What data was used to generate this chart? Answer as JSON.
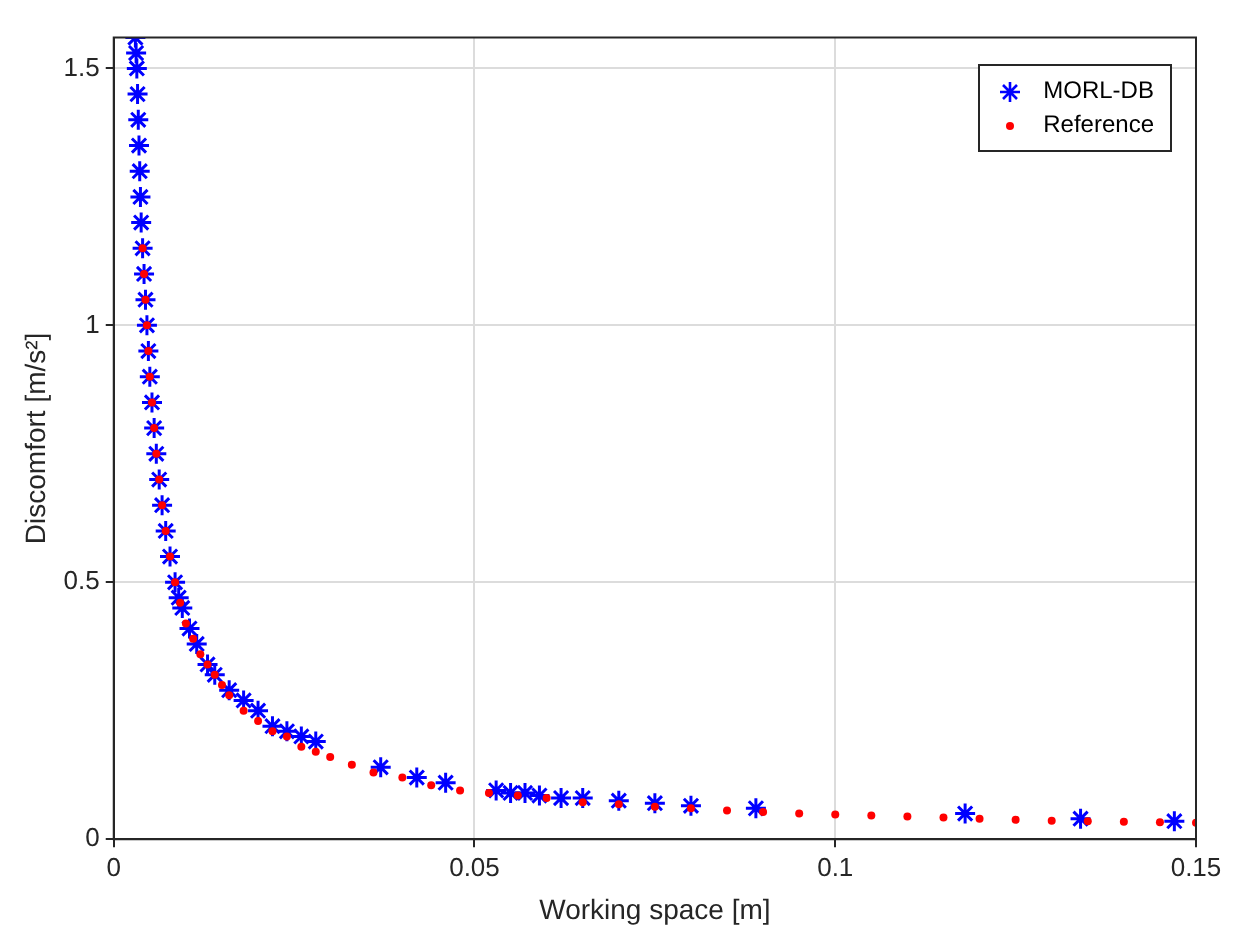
{
  "chart_data": {
    "type": "scatter",
    "xlabel": "Working space [m]",
    "ylabel": "Discomfort [m/s²]",
    "xlim": [
      0,
      0.15
    ],
    "xticks": [
      0,
      0.05,
      0.1,
      0.15
    ],
    "ylim": [
      0,
      1.56
    ],
    "yticks": [
      0,
      0.5,
      1,
      1.5
    ],
    "grid": true,
    "legend": "top right",
    "series": [
      {
        "name": "MORL-DB",
        "color": "#0000ff",
        "marker": "cross",
        "x": [
          0.003,
          0.0031,
          0.0032,
          0.0033,
          0.0034,
          0.0035,
          0.0036,
          0.0037,
          0.0038,
          0.004,
          0.0042,
          0.0044,
          0.0046,
          0.0048,
          0.005,
          0.0053,
          0.0056,
          0.0059,
          0.0063,
          0.0067,
          0.0072,
          0.0078,
          0.0085,
          0.009,
          0.0095,
          0.0105,
          0.0115,
          0.013,
          0.014,
          0.016,
          0.018,
          0.02,
          0.022,
          0.024,
          0.026,
          0.028,
          0.037,
          0.042,
          0.046,
          0.053,
          0.055,
          0.057,
          0.059,
          0.062,
          0.065,
          0.07,
          0.075,
          0.08,
          0.089,
          0.118,
          0.134,
          0.147
        ],
        "values": [
          1.56,
          1.53,
          1.5,
          1.45,
          1.4,
          1.35,
          1.3,
          1.25,
          1.2,
          1.15,
          1.1,
          1.05,
          1.0,
          0.95,
          0.9,
          0.85,
          0.8,
          0.75,
          0.7,
          0.65,
          0.6,
          0.55,
          0.5,
          0.47,
          0.45,
          0.41,
          0.38,
          0.34,
          0.32,
          0.29,
          0.27,
          0.25,
          0.22,
          0.21,
          0.2,
          0.19,
          0.14,
          0.12,
          0.11,
          0.095,
          0.09,
          0.09,
          0.085,
          0.08,
          0.08,
          0.075,
          0.07,
          0.065,
          0.06,
          0.05,
          0.04,
          0.035
        ]
      },
      {
        "name": "Reference",
        "color": "#ff0000",
        "marker": "circle",
        "x": [
          0.004,
          0.0042,
          0.0044,
          0.0046,
          0.0048,
          0.005,
          0.0053,
          0.0056,
          0.0059,
          0.0063,
          0.0067,
          0.0072,
          0.0078,
          0.0085,
          0.0092,
          0.01,
          0.011,
          0.012,
          0.013,
          0.014,
          0.015,
          0.016,
          0.018,
          0.02,
          0.022,
          0.024,
          0.026,
          0.028,
          0.03,
          0.033,
          0.036,
          0.04,
          0.044,
          0.048,
          0.052,
          0.056,
          0.06,
          0.065,
          0.07,
          0.075,
          0.08,
          0.085,
          0.09,
          0.095,
          0.1,
          0.105,
          0.11,
          0.115,
          0.12,
          0.125,
          0.13,
          0.135,
          0.14,
          0.145,
          0.15
        ],
        "values": [
          1.15,
          1.1,
          1.05,
          1.0,
          0.95,
          0.9,
          0.85,
          0.8,
          0.75,
          0.7,
          0.65,
          0.6,
          0.55,
          0.5,
          0.46,
          0.42,
          0.39,
          0.36,
          0.34,
          0.32,
          0.3,
          0.28,
          0.25,
          0.23,
          0.21,
          0.2,
          0.18,
          0.17,
          0.16,
          0.145,
          0.13,
          0.12,
          0.105,
          0.095,
          0.09,
          0.085,
          0.08,
          0.072,
          0.068,
          0.063,
          0.06,
          0.056,
          0.053,
          0.05,
          0.048,
          0.046,
          0.044,
          0.042,
          0.04,
          0.038,
          0.036,
          0.035,
          0.034,
          0.033,
          0.032
        ]
      }
    ]
  }
}
